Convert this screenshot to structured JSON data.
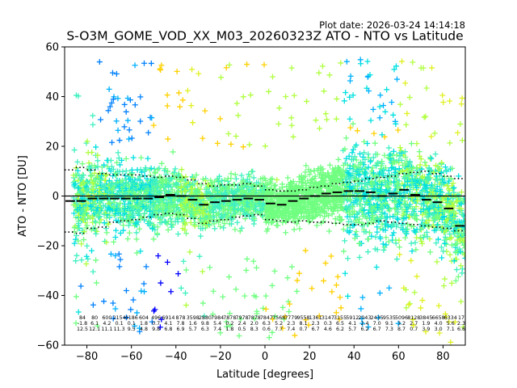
{
  "plot_date": "Plot date: 2026-03-24 14:14:18",
  "chart_data": {
    "type": "scatter",
    "title": "S-O3M_GOME_VOD_XX_M03_20260323Z ATO - NTO vs Latitude",
    "xlabel": "Latitude [degrees]",
    "ylabel": "ATO - NTO [DU]",
    "xlim": [
      -90,
      90
    ],
    "ylim": [
      -60,
      60
    ],
    "xticks": [
      -80,
      -60,
      -40,
      -20,
      0,
      20,
      40,
      60,
      80
    ],
    "yticks": [
      -60,
      -40,
      -20,
      0,
      20,
      40,
      60
    ],
    "xtick_labels": [
      "−80",
      "−60",
      "−40",
      "−20",
      "0",
      "20",
      "40",
      "60",
      "80"
    ],
    "ytick_labels": [
      "−60",
      "−40",
      "−20",
      "0",
      "20",
      "40",
      "60"
    ],
    "grid": false,
    "marker": "+",
    "zero_line": 0,
    "bins": {
      "lat": [
        -87.5,
        -82.5,
        -77.5,
        -72.5,
        -67.5,
        -62.5,
        -57.5,
        -52.5,
        -47.5,
        -42.5,
        -37.5,
        -32.5,
        -27.5,
        -22.5,
        -17.5,
        -12.5,
        -7.5,
        -2.5,
        2.5,
        7.5,
        12.5,
        17.5,
        22.5,
        27.5,
        32.5,
        37.5,
        42.5,
        47.5,
        52.5,
        57.5,
        62.5,
        67.5,
        72.5,
        77.5,
        82.5,
        87.5
      ],
      "mean": [
        -2,
        -2,
        -1,
        -1,
        -1,
        -1,
        -1,
        -1,
        -0.5,
        0.5,
        0,
        -1.5,
        -3.5,
        -2.5,
        -2,
        -1.5,
        -1,
        -1.5,
        -3,
        -3.5,
        -2,
        -1,
        0,
        1,
        1.5,
        2,
        2,
        1.5,
        0,
        1,
        2.5,
        0.5,
        -1.5,
        -2.5,
        -5,
        -12
      ],
      "upper": [
        10.5,
        11.5,
        10.5,
        9,
        8.5,
        8.5,
        8.5,
        8,
        7.5,
        8,
        7.5,
        6.5,
        5,
        4,
        4.5,
        4.5,
        5,
        4,
        2.5,
        2,
        2,
        2.5,
        3.5,
        4,
        5,
        5.5,
        6,
        7,
        7.5,
        8,
        9,
        9.5,
        10,
        9,
        8,
        7
      ],
      "lower": [
        -14.5,
        -15,
        -13,
        -12.5,
        -10.5,
        -10,
        -9.5,
        -8.5,
        -7.5,
        -7,
        -7.5,
        -9,
        -11,
        -10,
        -9.5,
        -8.5,
        -8,
        -7.5,
        -9.5,
        -10,
        -10.5,
        -10,
        -10.5,
        -10.5,
        -11,
        -11.5,
        -11.5,
        -11,
        -10,
        -10.5,
        -11,
        -11.5,
        -12,
        -12.5,
        -13,
        -14
      ]
    },
    "stats_rows": [
      [
        "84",
        "80",
        "600",
        "2154",
        "4186",
        "604",
        "496",
        "6914",
        "878",
        "3598",
        "2880",
        "7984",
        "7878",
        "7978",
        "7878",
        "7847",
        "7568",
        "7779",
        "9558",
        "1361",
        "3147",
        "3155",
        "5912",
        "2043",
        "2435",
        "9535",
        "5096",
        "8128",
        "3845",
        "6658",
        "6334",
        "172"
      ],
      [
        "-1.8",
        "6.1",
        "4.2",
        "0.1",
        "0.1",
        "1.8",
        "0.7",
        "4.1",
        "7.8",
        "1.6",
        "9.8",
        "5.4",
        "0.2",
        "2.4",
        "2.0",
        "6.3",
        "5.2",
        "2.3",
        "8.1",
        "2.3",
        "0.3",
        "6.5",
        "4.1",
        "2.4",
        "7.0",
        "9.1",
        "3.2",
        "2.7",
        "1.9",
        "4.0",
        "5.6",
        "2.36"
      ],
      [
        "12.5",
        "12.1",
        "11.1",
        "11.3",
        "9.5",
        "4.8",
        "9.8",
        "6.8",
        "6.9",
        "5.7",
        "6.3",
        "7.4",
        "1.8",
        "0.5",
        "8.3",
        "0.6",
        "7.7",
        "7.4",
        "0.7",
        "6.7",
        "4.6",
        "6.2",
        "5.7",
        "6.2",
        "6.7",
        "7.3",
        "8.7",
        "0.7",
        "3.9",
        "3.0",
        "7.1",
        "6.60"
      ]
    ],
    "colors": [
      "#0000ff",
      "#0080ff",
      "#00b0ff",
      "#00e0e0",
      "#40f0c0",
      "#70ff80",
      "#b0ff40",
      "#e0f020",
      "#ffd000",
      "#ffb000"
    ]
  }
}
